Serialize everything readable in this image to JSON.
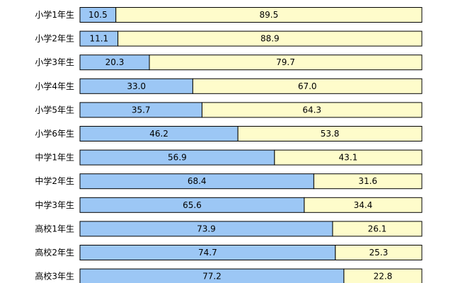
{
  "chart_data": {
    "type": "bar",
    "orientation": "horizontal",
    "stacked": true,
    "normalized": true,
    "categories": [
      "小学1年生",
      "小学2年生",
      "小学3年生",
      "小学4年生",
      "小学5年生",
      "小学6年生",
      "中学1年生",
      "中学2年生",
      "中学3年生",
      "高校1年生",
      "高校2年生",
      "高校3年生"
    ],
    "series": [
      {
        "values": [
          10.5,
          11.1,
          20.3,
          33.0,
          35.7,
          46.2,
          56.9,
          68.4,
          65.6,
          73.9,
          74.7,
          77.2
        ],
        "color": "#9cc7f5"
      },
      {
        "values": [
          89.5,
          88.9,
          79.7,
          67.0,
          64.3,
          53.8,
          43.1,
          31.6,
          34.4,
          26.1,
          25.3,
          22.8
        ],
        "color": "#fefccb"
      }
    ],
    "xlim": [
      0,
      100
    ],
    "grid": false,
    "legend": "none"
  }
}
